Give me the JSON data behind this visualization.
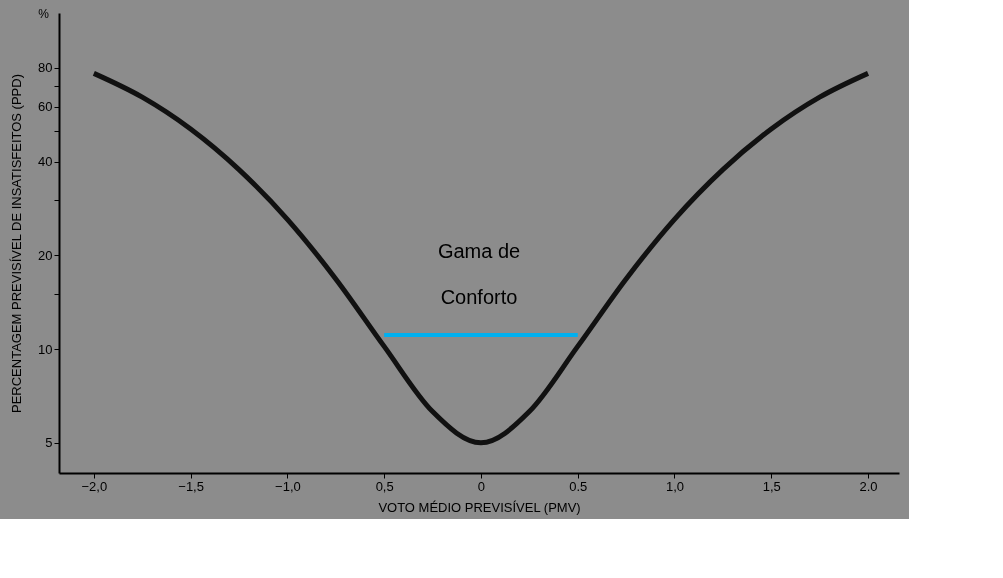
{
  "chart_data": {
    "type": "line",
    "xlabel": "VOTO MÉDIO PREVISÍVEL (PMV)",
    "ylabel": "PERCENTAGEM PREVISÍVEL DE INSATISFEITOS (PPD)",
    "log": "y",
    "xlim": [
      -2.18,
      2.16
    ],
    "ylim": [
      4,
      120
    ],
    "xticks": [
      {
        "value": -2,
        "label": "−2,0"
      },
      {
        "value": -1.5,
        "label": "−1,5"
      },
      {
        "value": -1,
        "label": "−1,0"
      },
      {
        "value": -0.5,
        "label": "0,5"
      },
      {
        "value": 0,
        "label": "0"
      },
      {
        "value": 0.5,
        "label": "0.5"
      },
      {
        "value": 1,
        "label": "1,0"
      },
      {
        "value": 1.5,
        "label": "1,5"
      },
      {
        "value": 2,
        "label": "2.0"
      }
    ],
    "yticks": [
      5,
      10,
      {
        "value": 15,
        "label": null
      },
      20,
      {
        "value": 30,
        "label": null
      },
      40,
      {
        "value": 50,
        "label": null
      },
      60,
      {
        "value": 70,
        "label": null
      },
      80
    ],
    "series": [
      {
        "color": "#111111",
        "x": [
          -2,
          -1.75,
          -1.5,
          -1.25,
          -1,
          -0.75,
          -0.5,
          -0.25,
          0,
          0.25,
          0.5,
          0.75,
          1,
          1.25,
          1.5,
          1.75,
          2
        ],
        "values": [
          76.8,
          64.4,
          50.9,
          37.7,
          26.1,
          16.8,
          10.2,
          6.3,
          5,
          6.3,
          10.2,
          16.8,
          26.1,
          37.7,
          50.9,
          64.4,
          76.8
        ]
      },
      {
        "color": "#00b0f0",
        "x": [
          -0.5,
          0.5
        ],
        "values": [
          11.1,
          11.1
        ]
      }
    ],
    "annotations": [
      "%",
      "Gama de Conforto"
    ],
    "grid": false
  }
}
